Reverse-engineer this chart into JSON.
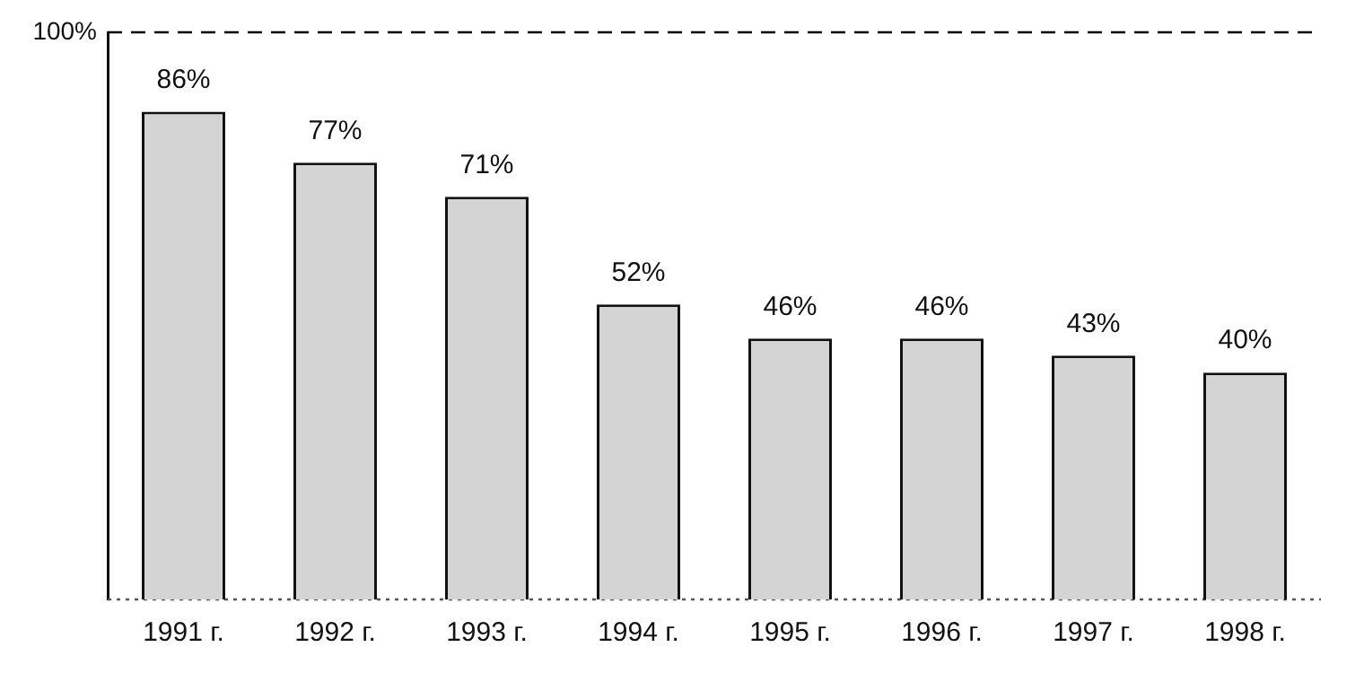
{
  "chart_data": {
    "type": "bar",
    "categories": [
      "1991 г.",
      "1992 г.",
      "1993 г.",
      "1994 г.",
      "1995 г.",
      "1996 г.",
      "1997 г.",
      "1998 г."
    ],
    "values": [
      86,
      77,
      71,
      52,
      46,
      46,
      43,
      40
    ],
    "value_labels": [
      "86%",
      "77%",
      "71%",
      "52%",
      "46%",
      "46%",
      "43%",
      "40%"
    ],
    "color": "#d4d4d4",
    "ref_lines": [
      {
        "axis": "y",
        "value": 100,
        "label": "100%",
        "line_style": "dashed",
        "color": "#000000"
      }
    ],
    "legend": false
  }
}
